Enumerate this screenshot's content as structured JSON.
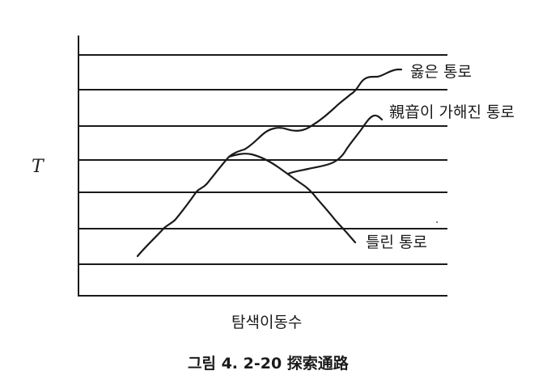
{
  "diagram": {
    "y_axis_label": "T",
    "x_axis_label": "탐색이동수",
    "caption": "그림 4. 2-20  探索通路",
    "paths": [
      {
        "label": "옳은 통로"
      },
      {
        "label": "親音이 가해진 통로"
      },
      {
        "label": "틀린 통로"
      }
    ],
    "line_color": "#1a1a1a",
    "background": "#ffffff"
  }
}
